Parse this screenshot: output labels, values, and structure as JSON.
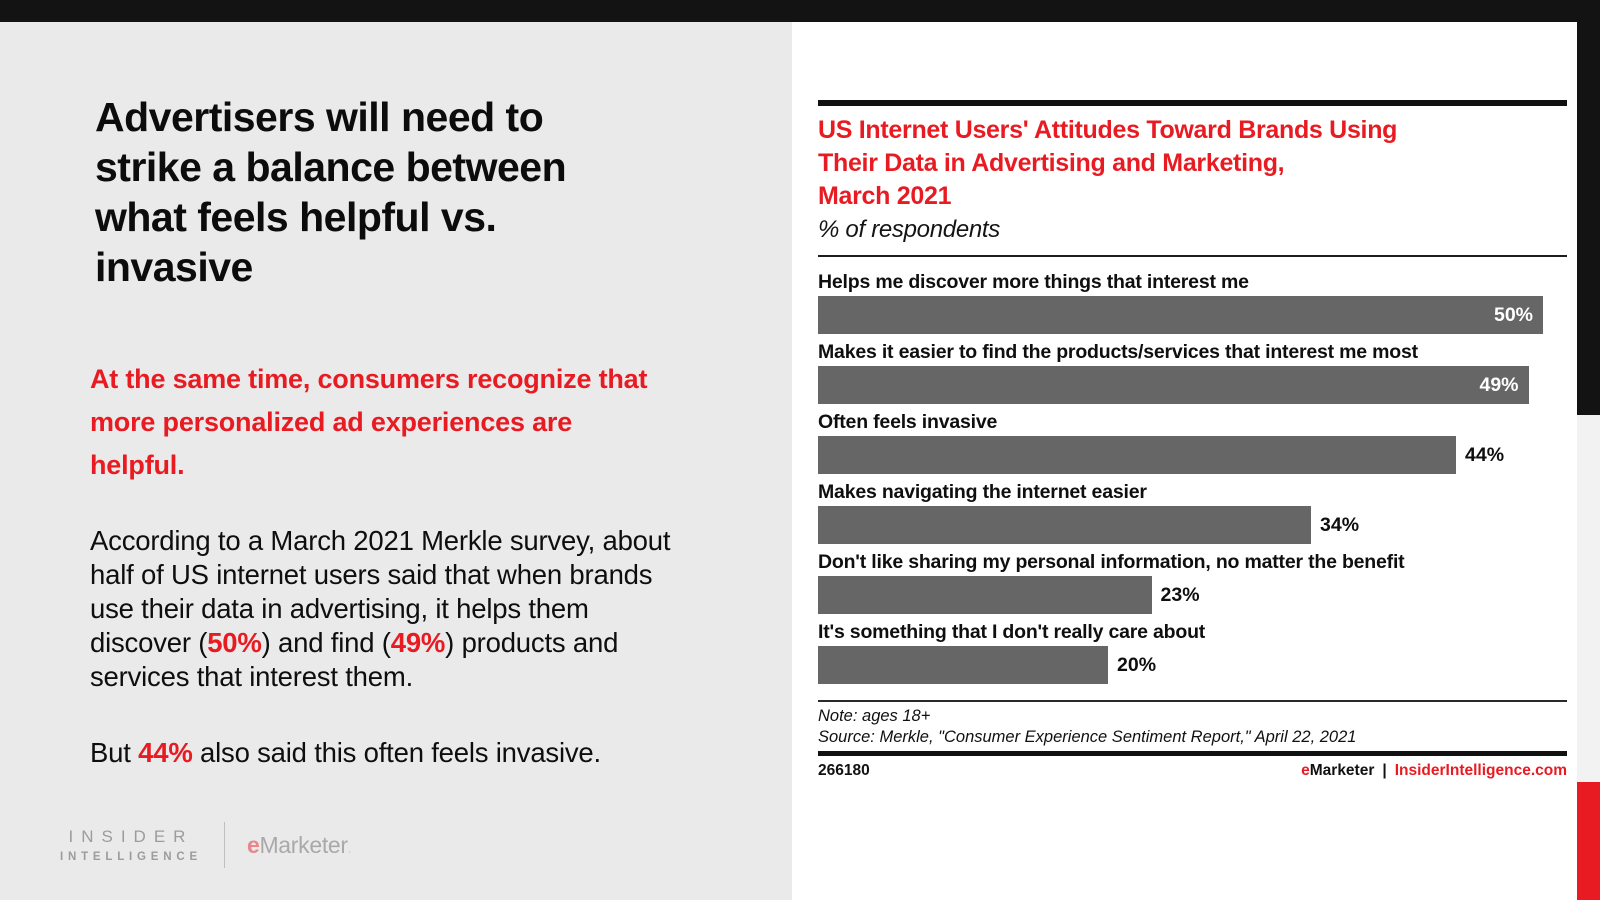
{
  "colors": {
    "accent_red": "#e81b22",
    "bar_gray": "#666666",
    "top_bar": "#131313",
    "left_bg": "#eaeaea"
  },
  "slide": {
    "headline_lines": [
      "Advertisers will need to",
      "strike a balance between",
      "what feels helpful vs.",
      "invasive"
    ],
    "emphasis_lines": [
      "At the same time, consumers recognize that",
      "more personalized ad experiences are",
      "helpful."
    ],
    "body_lines": [
      [
        {
          "t": "According to a March 2021 Merkle survey, about"
        }
      ],
      [
        {
          "t": "half of US internet users said that when brands"
        }
      ],
      [
        {
          "t": "use their data in advertising, it helps them"
        }
      ],
      [
        {
          "t": "discover ("
        },
        {
          "t": "50%",
          "h": true
        },
        {
          "t": ") and find ("
        },
        {
          "t": "49%",
          "h": true
        },
        {
          "t": ") products and"
        }
      ],
      [
        {
          "t": "services that interest them."
        }
      ]
    ],
    "closing_line": [
      {
        "t": "But "
      },
      {
        "t": "44%",
        "h": true
      },
      {
        "t": " also said this often feels invasive."
      }
    ],
    "logos": {
      "insider_line1": "INSIDER",
      "insider_line2": "INTELLIGENCE",
      "emarketer_e": "e",
      "emarketer_rest": "Marketer",
      "emarketer_mark": "."
    }
  },
  "chart_data": {
    "type": "bar",
    "orientation": "horizontal",
    "title": "US Internet Users' Attitudes Toward Brands Using Their Data in Advertising and Marketing, March 2021",
    "title_lines": [
      "US Internet Users' Attitudes Toward Brands Using",
      "Their Data in Advertising and Marketing,",
      "March 2021"
    ],
    "subtitle": "% of respondents",
    "categories": [
      "Helps me discover more things that interest me",
      "Makes it easier to find the products/services that interest me most",
      "Often feels invasive",
      "Makes navigating the internet easier",
      "Don't like sharing my personal information, no matter the benefit",
      "It's something that I don't really care about"
    ],
    "values": [
      50,
      49,
      44,
      34,
      23,
      20
    ],
    "value_labels": [
      "50%",
      "49%",
      "44%",
      "34%",
      "23%",
      "20%"
    ],
    "xlim": [
      0,
      50
    ],
    "grid": false,
    "legend": false,
    "note": "Note: ages 18+",
    "source": "Source: Merkle, \"Consumer Experience Sentiment Report,\" April 22, 2021",
    "chart_id": "266180",
    "brand": {
      "e": "e",
      "marketer": "Marketer",
      "separator": "|",
      "site": "InsiderIntelligence.com"
    }
  }
}
